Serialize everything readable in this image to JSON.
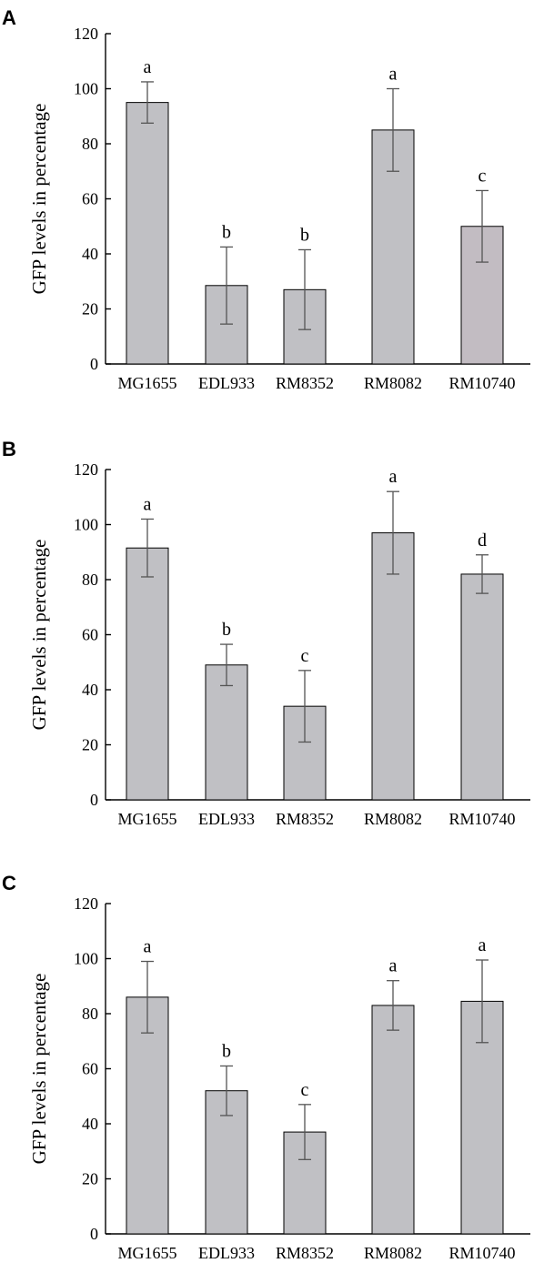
{
  "colors": {
    "bar": "#c0c0c4",
    "bar_alt": "#c2bcc2",
    "axis": "#000000",
    "error": "#555555"
  },
  "chart_data": [
    {
      "type": "bar",
      "panel": "A",
      "ylabel": "GFP levels in percentage",
      "ylim": [
        0,
        120
      ],
      "yticks": [
        0,
        20,
        40,
        60,
        80,
        100,
        120
      ],
      "categories": [
        "MG1655",
        "EDL933",
        "RM8352",
        "RM8082",
        "RM10740"
      ],
      "values": [
        95,
        28.5,
        27,
        85,
        50
      ],
      "errors": [
        7.5,
        14,
        14.5,
        15,
        13
      ],
      "significance": [
        "a",
        "b",
        "b",
        "a",
        "c"
      ]
    },
    {
      "type": "bar",
      "panel": "B",
      "ylabel": "GFP levels in percentage",
      "ylim": [
        0,
        120
      ],
      "yticks": [
        0,
        20,
        40,
        60,
        80,
        100,
        120
      ],
      "categories": [
        "MG1655",
        "EDL933",
        "RM8352",
        "RM8082",
        "RM10740"
      ],
      "values": [
        91.5,
        49,
        34,
        97,
        82
      ],
      "errors": [
        10.5,
        7.5,
        13,
        15,
        7
      ],
      "significance": [
        "a",
        "b",
        "c",
        "a",
        "d"
      ]
    },
    {
      "type": "bar",
      "panel": "C",
      "ylabel": "GFP levels in percentage",
      "ylim": [
        0,
        120
      ],
      "yticks": [
        0,
        20,
        40,
        60,
        80,
        100,
        120
      ],
      "categories": [
        "MG1655",
        "EDL933",
        "RM8352",
        "RM8082",
        "RM10740"
      ],
      "values": [
        86,
        52,
        37,
        83,
        84.5
      ],
      "errors": [
        13,
        9,
        10,
        9,
        15
      ],
      "significance": [
        "a",
        "b",
        "c",
        "a",
        "a"
      ]
    }
  ]
}
